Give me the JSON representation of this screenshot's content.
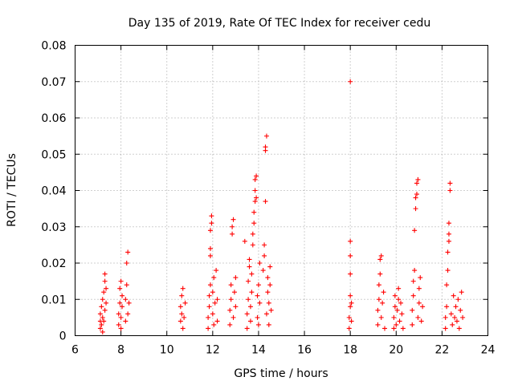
{
  "chart_data": {
    "type": "scatter",
    "title": "Day 135 of 2019, Rate Of TEC Index for receiver cedu",
    "xlabel": "GPS time / hours",
    "ylabel": "ROTI / TECUs",
    "xlim": [
      6,
      24
    ],
    "ylim": [
      0,
      0.08
    ],
    "x_ticks": [
      6,
      8,
      10,
      12,
      14,
      16,
      18,
      20,
      22,
      24
    ],
    "x_tick_labels": [
      "6",
      "8",
      "10",
      "12",
      "14",
      "16",
      "18",
      "20",
      "22",
      "24"
    ],
    "y_ticks": [
      0,
      0.01,
      0.02,
      0.03,
      0.04,
      0.05,
      0.06,
      0.07,
      0.08
    ],
    "y_tick_labels": [
      "0",
      "0.01",
      "0.02",
      "0.03",
      "0.04",
      "0.05",
      "0.06",
      "0.07",
      "0.08"
    ],
    "grid": true,
    "marker": "+",
    "color": "#ff0000",
    "series": [
      {
        "name": "ROTI",
        "points": [
          [
            7.1,
            0.002
          ],
          [
            7.1,
            0.004
          ],
          [
            7.1,
            0.006
          ],
          [
            7.15,
            0.003
          ],
          [
            7.15,
            0.008
          ],
          [
            7.2,
            0.001
          ],
          [
            7.2,
            0.005
          ],
          [
            7.2,
            0.01
          ],
          [
            7.25,
            0.004
          ],
          [
            7.25,
            0.012
          ],
          [
            7.3,
            0.007
          ],
          [
            7.3,
            0.015
          ],
          [
            7.3,
            0.017
          ],
          [
            7.35,
            0.009
          ],
          [
            7.35,
            0.013
          ],
          [
            7.9,
            0.003
          ],
          [
            7.9,
            0.006
          ],
          [
            7.95,
            0.009
          ],
          [
            7.95,
            0.013
          ],
          [
            8.0,
            0.002
          ],
          [
            8.0,
            0.005
          ],
          [
            8.0,
            0.015
          ],
          [
            8.05,
            0.008
          ],
          [
            8.05,
            0.011
          ],
          [
            8.2,
            0.004
          ],
          [
            8.2,
            0.01
          ],
          [
            8.25,
            0.014
          ],
          [
            8.25,
            0.02
          ],
          [
            8.3,
            0.023
          ],
          [
            8.3,
            0.006
          ],
          [
            8.35,
            0.009
          ],
          [
            10.6,
            0.004
          ],
          [
            10.6,
            0.008
          ],
          [
            10.65,
            0.011
          ],
          [
            10.65,
            0.006
          ],
          [
            10.7,
            0.002
          ],
          [
            10.7,
            0.013
          ],
          [
            10.75,
            0.005
          ],
          [
            10.8,
            0.009
          ],
          [
            11.8,
            0.002
          ],
          [
            11.8,
            0.005
          ],
          [
            11.85,
            0.008
          ],
          [
            11.85,
            0.011
          ],
          [
            11.9,
            0.014
          ],
          [
            11.9,
            0.022
          ],
          [
            11.9,
            0.024
          ],
          [
            11.9,
            0.029
          ],
          [
            11.95,
            0.031
          ],
          [
            11.95,
            0.033
          ],
          [
            12.0,
            0.006
          ],
          [
            12.0,
            0.012
          ],
          [
            12.05,
            0.016
          ],
          [
            12.05,
            0.003
          ],
          [
            12.1,
            0.009
          ],
          [
            12.15,
            0.018
          ],
          [
            12.2,
            0.004
          ],
          [
            12.2,
            0.01
          ],
          [
            12.75,
            0.003
          ],
          [
            12.75,
            0.007
          ],
          [
            12.8,
            0.01
          ],
          [
            12.8,
            0.014
          ],
          [
            12.85,
            0.028
          ],
          [
            12.85,
            0.03
          ],
          [
            12.9,
            0.032
          ],
          [
            12.9,
            0.005
          ],
          [
            12.95,
            0.012
          ],
          [
            13.0,
            0.016
          ],
          [
            13.0,
            0.008
          ],
          [
            13.4,
            0.026
          ],
          [
            13.5,
            0.002
          ],
          [
            13.5,
            0.006
          ],
          [
            13.55,
            0.01
          ],
          [
            13.55,
            0.015
          ],
          [
            13.6,
            0.019
          ],
          [
            13.6,
            0.021
          ],
          [
            13.65,
            0.004
          ],
          [
            13.65,
            0.008
          ],
          [
            13.7,
            0.012
          ],
          [
            13.7,
            0.017
          ],
          [
            13.75,
            0.025
          ],
          [
            13.75,
            0.028
          ],
          [
            13.8,
            0.031
          ],
          [
            13.8,
            0.034
          ],
          [
            13.85,
            0.037
          ],
          [
            13.85,
            0.04
          ],
          [
            13.85,
            0.043
          ],
          [
            13.9,
            0.044
          ],
          [
            13.9,
            0.038
          ],
          [
            13.95,
            0.005
          ],
          [
            13.95,
            0.011
          ],
          [
            14.0,
            0.003
          ],
          [
            14.0,
            0.014
          ],
          [
            14.05,
            0.009
          ],
          [
            14.05,
            0.02
          ],
          [
            14.2,
            0.018
          ],
          [
            14.25,
            0.022
          ],
          [
            14.25,
            0.025
          ],
          [
            14.3,
            0.037
          ],
          [
            14.3,
            0.051
          ],
          [
            14.3,
            0.052
          ],
          [
            14.35,
            0.055
          ],
          [
            14.35,
            0.006
          ],
          [
            14.4,
            0.012
          ],
          [
            14.4,
            0.016
          ],
          [
            14.45,
            0.009
          ],
          [
            14.45,
            0.003
          ],
          [
            14.5,
            0.014
          ],
          [
            14.5,
            0.019
          ],
          [
            14.55,
            0.007
          ],
          [
            17.95,
            0.002
          ],
          [
            17.95,
            0.005
          ],
          [
            18.0,
            0.008
          ],
          [
            18.0,
            0.011
          ],
          [
            18.0,
            0.017
          ],
          [
            18.0,
            0.022
          ],
          [
            18.0,
            0.026
          ],
          [
            18.0,
            0.07
          ],
          [
            18.05,
            0.004
          ],
          [
            18.05,
            0.009
          ],
          [
            19.2,
            0.003
          ],
          [
            19.2,
            0.007
          ],
          [
            19.25,
            0.01
          ],
          [
            19.25,
            0.014
          ],
          [
            19.3,
            0.017
          ],
          [
            19.3,
            0.021
          ],
          [
            19.35,
            0.022
          ],
          [
            19.35,
            0.005
          ],
          [
            19.4,
            0.009
          ],
          [
            19.45,
            0.012
          ],
          [
            19.5,
            0.002
          ],
          [
            19.9,
            0.002
          ],
          [
            19.9,
            0.005
          ],
          [
            19.95,
            0.008
          ],
          [
            19.95,
            0.011
          ],
          [
            20.0,
            0.003
          ],
          [
            20.05,
            0.007
          ],
          [
            20.1,
            0.01
          ],
          [
            20.1,
            0.013
          ],
          [
            20.15,
            0.004
          ],
          [
            20.2,
            0.009
          ],
          [
            20.25,
            0.006
          ],
          [
            20.3,
            0.002
          ],
          [
            20.7,
            0.003
          ],
          [
            20.7,
            0.007
          ],
          [
            20.75,
            0.011
          ],
          [
            20.75,
            0.015
          ],
          [
            20.8,
            0.018
          ],
          [
            20.8,
            0.029
          ],
          [
            20.85,
            0.035
          ],
          [
            20.85,
            0.038
          ],
          [
            20.9,
            0.039
          ],
          [
            20.9,
            0.042
          ],
          [
            20.95,
            0.043
          ],
          [
            20.95,
            0.005
          ],
          [
            21.0,
            0.009
          ],
          [
            21.0,
            0.013
          ],
          [
            21.05,
            0.016
          ],
          [
            21.1,
            0.004
          ],
          [
            21.15,
            0.008
          ],
          [
            22.15,
            0.002
          ],
          [
            22.15,
            0.005
          ],
          [
            22.2,
            0.008
          ],
          [
            22.2,
            0.014
          ],
          [
            22.25,
            0.018
          ],
          [
            22.25,
            0.023
          ],
          [
            22.3,
            0.026
          ],
          [
            22.3,
            0.028
          ],
          [
            22.3,
            0.031
          ],
          [
            22.35,
            0.04
          ],
          [
            22.35,
            0.042
          ],
          [
            22.4,
            0.006
          ],
          [
            22.45,
            0.003
          ],
          [
            22.5,
            0.011
          ],
          [
            22.55,
            0.005
          ],
          [
            22.6,
            0.008
          ],
          [
            22.65,
            0.004
          ],
          [
            22.7,
            0.01
          ],
          [
            22.75,
            0.002
          ],
          [
            22.8,
            0.007
          ],
          [
            22.85,
            0.012
          ],
          [
            22.9,
            0.005
          ]
        ]
      }
    ]
  }
}
